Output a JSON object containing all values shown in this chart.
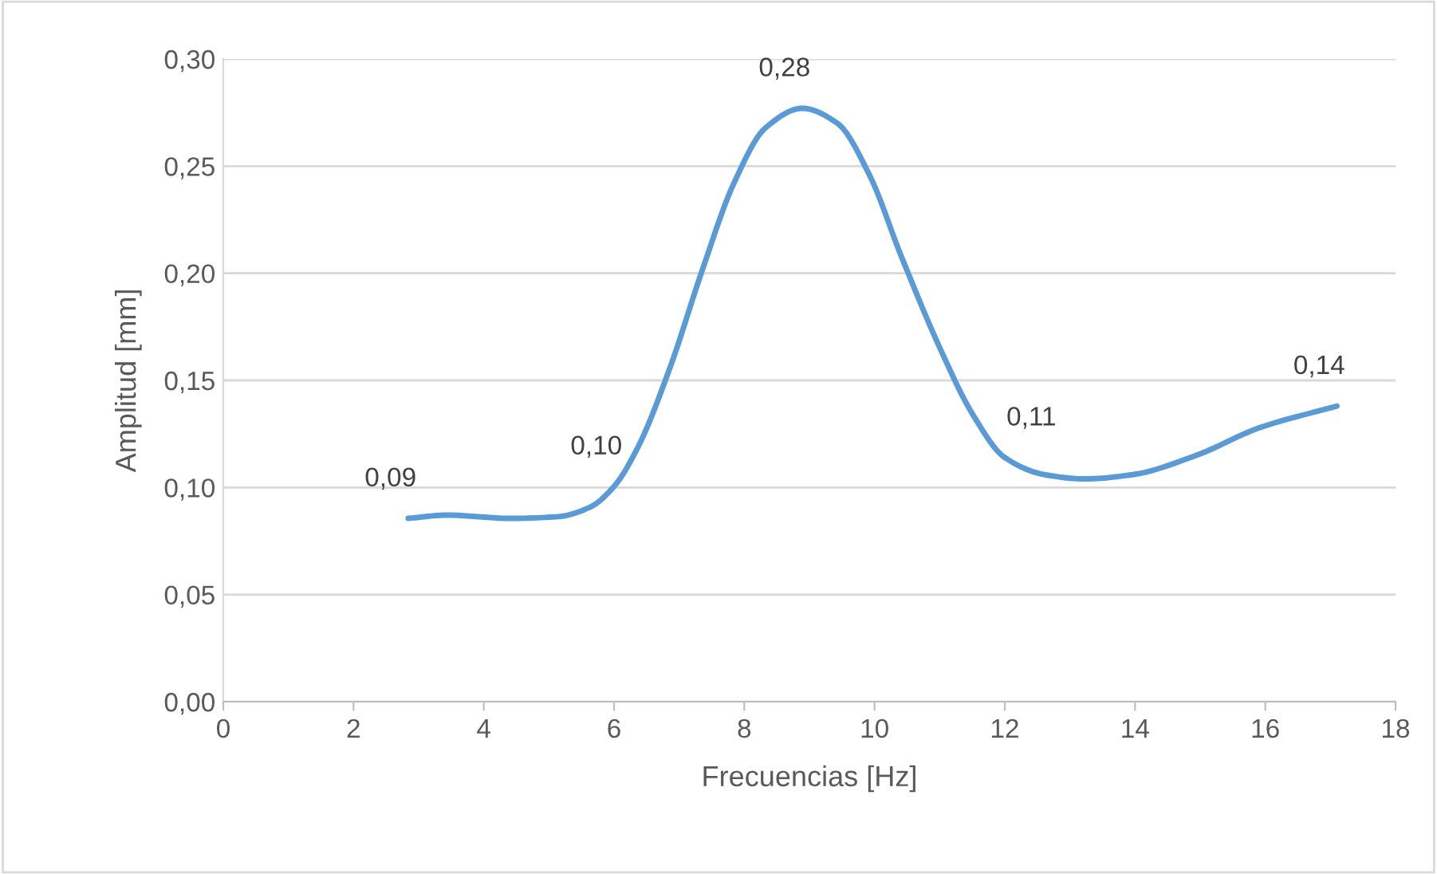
{
  "chart_data": {
    "type": "line",
    "xlabel": "Frecuencias [Hz]",
    "ylabel": "Amplitud [mm]",
    "x": [
      2.84,
      3.43,
      4.41,
      5.14,
      5.63,
      6.0,
      6.37,
      6.86,
      7.35,
      7.84,
      8.33,
      8.89,
      9.43,
      9.92,
      10.41,
      11.02,
      11.51,
      12.0,
      12.61,
      13.23,
      13.96,
      14.94,
      15.92,
      17.1
    ],
    "series": [
      {
        "color": "#5b9bd5",
        "values": [
          0.0856,
          0.0871,
          0.0856,
          0.0864,
          0.0908,
          0.1005,
          0.119,
          0.156,
          0.201,
          0.242,
          0.268,
          0.277,
          0.27,
          0.246,
          0.208,
          0.164,
          0.134,
          0.114,
          0.106,
          0.104,
          0.106,
          0.115,
          0.128,
          0.138
        ],
        "value_labels": [
          "0,09",
          null,
          null,
          null,
          null,
          "0,10",
          null,
          null,
          null,
          null,
          null,
          "0,28",
          null,
          null,
          null,
          null,
          null,
          "0,11",
          null,
          null,
          null,
          null,
          null,
          "0,14"
        ]
      }
    ],
    "xlim": [
      0,
      18
    ],
    "xticks": [
      0,
      2,
      4,
      6,
      8,
      10,
      12,
      14,
      16,
      18
    ],
    "ylim": [
      0,
      0.3
    ],
    "yticks": [
      {
        "value": 0,
        "label": "0,00"
      },
      {
        "value": 0.05,
        "label": "0,05"
      },
      {
        "value": 0.1,
        "label": "0,10"
      },
      {
        "value": 0.15,
        "label": "0,15"
      },
      {
        "value": 0.2,
        "label": "0,20"
      },
      {
        "value": 0.25,
        "label": "0,25"
      },
      {
        "value": 0.3,
        "label": "0,30"
      }
    ],
    "grid": "y",
    "legend": false,
    "marker": "none",
    "line_style": "solid"
  }
}
